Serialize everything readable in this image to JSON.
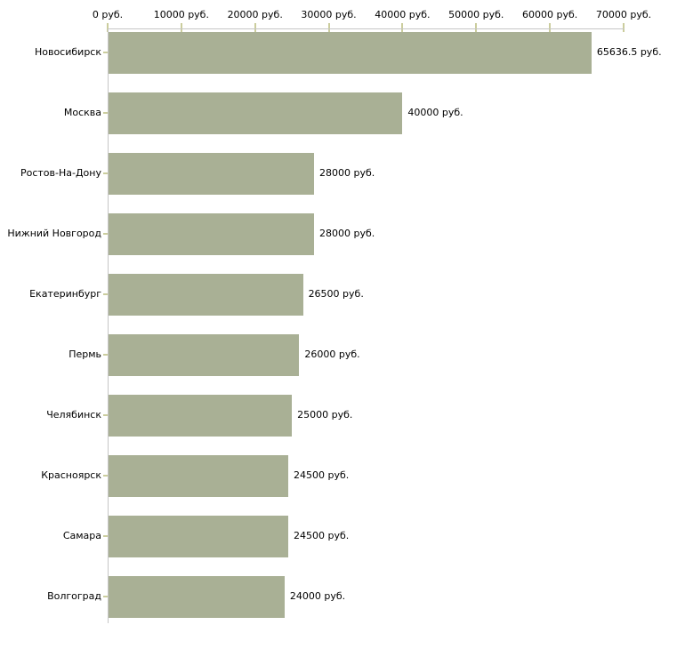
{
  "chart_data": {
    "type": "bar",
    "orientation": "horizontal",
    "title": "",
    "xlabel": "",
    "ylabel": "",
    "grid": false,
    "legend": null,
    "axis_position": "top",
    "categories": [
      "Новосибирск",
      "Москва",
      "Ростов-На-Дону",
      "Нижний Новгород",
      "Екатеринбург",
      "Пермь",
      "Челябинск",
      "Красноярск",
      "Самара",
      "Волгоград"
    ],
    "values": [
      65636.5,
      40000,
      28000,
      28000,
      26500,
      26000,
      25000,
      24500,
      24500,
      24000
    ],
    "value_labels": [
      "65636.5 руб.",
      "40000 руб.",
      "28000 руб.",
      "28000 руб.",
      "26500 руб.",
      "26000 руб.",
      "25000 руб.",
      "24500 руб.",
      "24500 руб.",
      "24000 руб."
    ],
    "x_ticks": [
      0,
      10000,
      20000,
      30000,
      40000,
      50000,
      60000,
      70000
    ],
    "x_tick_labels": [
      "0 руб.",
      "10000 руб.",
      "20000 руб.",
      "30000 руб.",
      "40000 руб.",
      "50000 руб.",
      "60000 руб.",
      "70000 руб."
    ],
    "xlim": [
      0,
      70000
    ]
  },
  "colors": {
    "bar": "#a9b095",
    "axis_line": "#c6c6c6",
    "tick": "#cbcd9d",
    "text": "#000000",
    "background": "#ffffff"
  }
}
